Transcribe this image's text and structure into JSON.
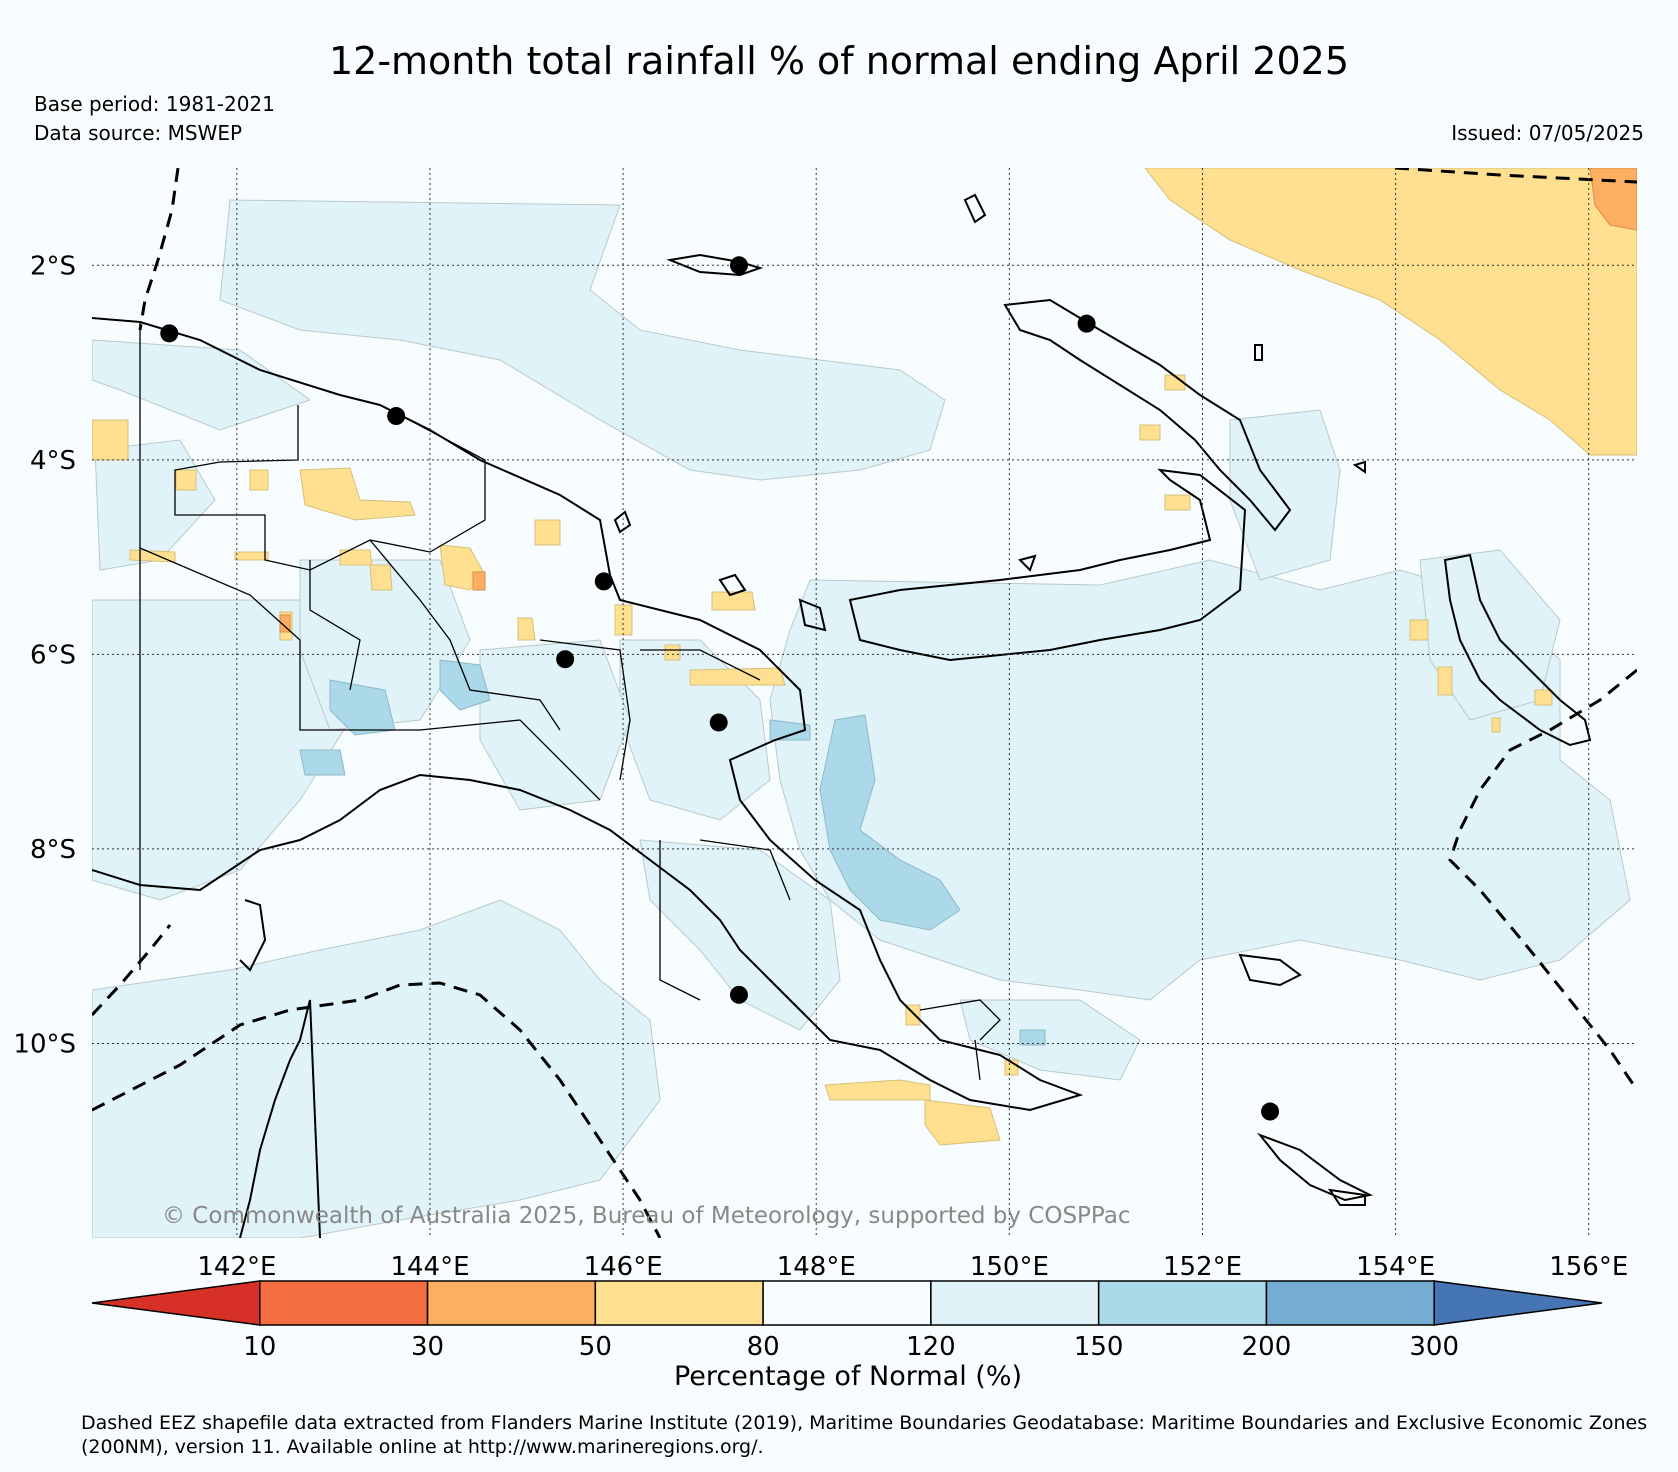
{
  "title": "12-month total rainfall % of normal ending April 2025",
  "base_period": "Base period: 1981-2021",
  "data_source": "Data source: MSWEP",
  "issued": "Issued: 07/05/2025",
  "copyright": "© Commonwealth of Australia 2025, Bureau of Meteorology, supported by COSPPac",
  "map": {
    "lon_range": [
      140.5,
      156.5
    ],
    "lat_range": [
      -12.0,
      -1.0
    ],
    "lat_ticks": [
      {
        "value": -2,
        "label": "2°S"
      },
      {
        "value": -4,
        "label": "4°S"
      },
      {
        "value": -6,
        "label": "6°S"
      },
      {
        "value": -8,
        "label": "8°S"
      },
      {
        "value": -10,
        "label": "10°S"
      }
    ],
    "lon_ticks": [
      {
        "value": 142,
        "label": "142°E"
      },
      {
        "value": 144,
        "label": "144°E"
      },
      {
        "value": 146,
        "label": "146°E"
      },
      {
        "value": 148,
        "label": "148°E"
      },
      {
        "value": 150,
        "label": "150°E"
      },
      {
        "value": 152,
        "label": "152°E"
      },
      {
        "value": 154,
        "label": "154°E"
      },
      {
        "value": 156,
        "label": "156°E"
      }
    ],
    "gridlines": true,
    "cities": [
      {
        "lon": 141.3,
        "lat": -2.7
      },
      {
        "lon": 143.65,
        "lat": -3.55
      },
      {
        "lon": 145.8,
        "lat": -5.25
      },
      {
        "lon": 145.4,
        "lat": -6.05
      },
      {
        "lon": 146.99,
        "lat": -6.7
      },
      {
        "lon": 147.2,
        "lat": -9.5
      },
      {
        "lon": 147.2,
        "lat": -2.0
      },
      {
        "lon": 150.8,
        "lat": -2.6
      },
      {
        "lon": 152.7,
        "lat": -10.7
      }
    ]
  },
  "colorbar": {
    "title": "Percentage of Normal (%)",
    "ticks": [
      "10",
      "30",
      "50",
      "80",
      "120",
      "150",
      "200",
      "300"
    ],
    "colors": [
      "#d73027",
      "#f46d43",
      "#fdae61",
      "#fee090",
      "#f7fdfe",
      "#e0f3f8",
      "#abd9e9",
      "#74add1",
      "#4575b4"
    ]
  },
  "footnote": "Dashed EEZ shapefile data extracted from Flanders Marine Institute (2019), Maritime Boundaries Geodatabase: Maritime Boundaries and Exclusive Economic Zones (200NM), version 11. Available online at http://www.marineregions.org/."
}
